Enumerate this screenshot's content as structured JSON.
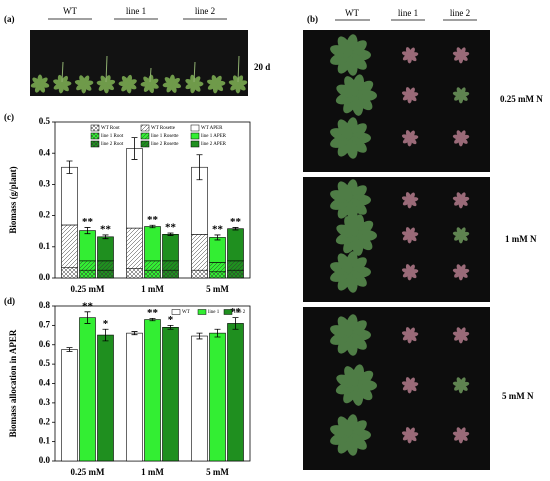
{
  "panel_a": {
    "label": "(a)",
    "columns": [
      "WT",
      "line 1",
      "line 2"
    ],
    "age": "20 d"
  },
  "panel_b": {
    "label": "(b)",
    "columns": [
      "WT",
      "line 1",
      "line 2"
    ],
    "rows": [
      "0.25 mM N",
      "1 mM N",
      "5 mM N"
    ]
  },
  "chart_data": [
    {
      "type": "stacked_bar",
      "panel_label": "(c)",
      "y_label": "Biomass (g/plant)",
      "categories": [
        "0.25 mM",
        "1 mM",
        "5 mM"
      ],
      "ylim": [
        0,
        0.5
      ],
      "yticks": [
        {
          "value": 0,
          "label": "0.0"
        },
        0.1,
        0.2,
        0.3,
        0.4,
        0.5
      ],
      "series": [
        {
          "name": "WT Root",
          "stack": "WT",
          "color": "#ffffff",
          "pattern": "crosshatch",
          "values": [
            0.033,
            0.03,
            0.025
          ]
        },
        {
          "name": "WT Rosette",
          "stack": "WT",
          "color": "#ffffff",
          "pattern": "diagonal",
          "values": [
            0.137,
            0.13,
            0.115
          ]
        },
        {
          "name": "WT APER",
          "stack": "WT",
          "color": "#ffffff",
          "pattern": "none",
          "values": [
            0.185,
            0.255,
            0.215
          ],
          "errors": [
            0.02,
            0.035,
            0.04
          ]
        },
        {
          "name": "line 1 Root",
          "stack": "line 1",
          "color": "#33ee33",
          "pattern": "crosshatch",
          "values": [
            0.025,
            0.025,
            0.02
          ]
        },
        {
          "name": "line 1 Rosette",
          "stack": "line 1",
          "color": "#33ee33",
          "pattern": "diagonal",
          "values": [
            0.03,
            0.03,
            0.03
          ]
        },
        {
          "name": "line 1 APER",
          "stack": "line 1",
          "color": "#33ee33",
          "pattern": "none",
          "values": [
            0.097,
            0.11,
            0.08
          ],
          "errors": [
            0.01,
            0.004,
            0.008
          ],
          "significance": [
            "**",
            "**",
            "**"
          ]
        },
        {
          "name": "line 2 Root",
          "stack": "line 2",
          "color": "#1f8f1f",
          "pattern": "crosshatch",
          "values": [
            0.025,
            0.025,
            0.025
          ]
        },
        {
          "name": "line 2 Rosette",
          "stack": "line 2",
          "color": "#1f8f1f",
          "pattern": "diagonal",
          "values": [
            0.03,
            0.03,
            0.03
          ]
        },
        {
          "name": "line 2 APER",
          "stack": "line 2",
          "color": "#1f8f1f",
          "pattern": "none",
          "values": [
            0.077,
            0.085,
            0.103
          ],
          "errors": [
            0.006,
            0.004,
            0.004
          ],
          "significance": [
            "**",
            "**",
            "**"
          ]
        }
      ]
    },
    {
      "type": "bar",
      "panel_label": "(d)",
      "y_label": "Biomass allocation in APER",
      "categories": [
        "0.25 mM",
        "1 mM",
        "5 mM"
      ],
      "ylim": [
        0,
        0.8
      ],
      "yticks": [
        {
          "value": 0,
          "label": "0.0"
        },
        0.1,
        0.2,
        0.3,
        0.4,
        0.5,
        0.6,
        0.7,
        0.8
      ],
      "legend": "top-right",
      "series": [
        {
          "name": "WT",
          "color": "#ffffff",
          "values": [
            0.575,
            0.66,
            0.645
          ],
          "errors": [
            0.01,
            0.008,
            0.015
          ]
        },
        {
          "name": "line 1",
          "color": "#33ee33",
          "values": [
            0.74,
            0.73,
            0.66
          ],
          "errors": [
            0.03,
            0.006,
            0.02
          ],
          "significance": [
            "**",
            "**",
            null
          ]
        },
        {
          "name": "line 2",
          "color": "#1f8f1f",
          "values": [
            0.65,
            0.69,
            0.71
          ],
          "errors": [
            0.03,
            0.01,
            0.03
          ],
          "significance": [
            "*",
            "*",
            "**"
          ]
        }
      ]
    }
  ]
}
